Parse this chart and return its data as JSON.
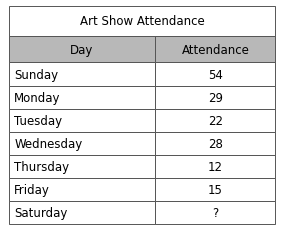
{
  "title": "Art Show Attendance",
  "col_headers": [
    "Day",
    "Attendance"
  ],
  "rows": [
    [
      "Sunday",
      "54"
    ],
    [
      "Monday",
      "29"
    ],
    [
      "Tuesday",
      "22"
    ],
    [
      "Wednesday",
      "28"
    ],
    [
      "Thursday",
      "12"
    ],
    [
      "Friday",
      "15"
    ],
    [
      "Saturday",
      "?"
    ]
  ],
  "header_bg": "#b8b8b8",
  "title_bg": "#ffffff",
  "row_bg": "#ffffff",
  "border_color": "#555555",
  "text_color": "#000000",
  "title_fontsize": 8.5,
  "header_fontsize": 8.5,
  "cell_fontsize": 8.5,
  "fig_width": 2.84,
  "fig_height": 2.32,
  "dpi": 100
}
